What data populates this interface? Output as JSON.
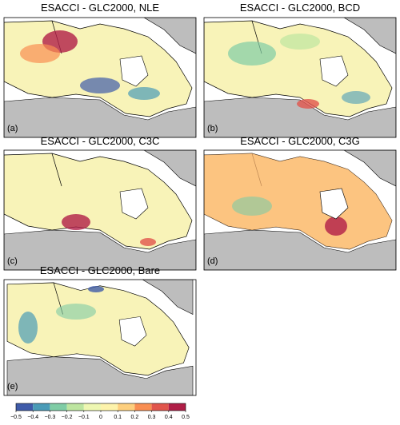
{
  "panels": [
    {
      "title": "ESACCI - GLC2000, NLE",
      "label": "(a)"
    },
    {
      "title": "ESACCI - GLC2000, BCD",
      "label": "(b)"
    },
    {
      "title": "ESACCI - GLC2000, C3C",
      "label": "(c)"
    },
    {
      "title": "ESACCI - GLC2000, C3G",
      "label": "(d)"
    },
    {
      "title": "ESACCI - GLC2000, Bare",
      "label": "(e)"
    }
  ],
  "colorbar": {
    "ticks": [
      {
        "value": -0.5,
        "label": "−0.5"
      },
      {
        "value": -0.4,
        "label": "−0.4"
      },
      {
        "value": -0.3,
        "label": "−0.3"
      },
      {
        "value": -0.2,
        "label": "−0.2"
      },
      {
        "value": -0.1,
        "label": "−0.1"
      },
      0,
      0.1,
      0.2,
      0.3,
      0.4,
      0.5
    ],
    "colors": [
      "#3f5ba9",
      "#4a9bb7",
      "#7fcca5",
      "#bde5a0",
      "#eef7b2",
      "#fdf3ab",
      "#fdcf7e",
      "#f98e52",
      "#e1554c",
      "#b01e47"
    ]
  }
}
